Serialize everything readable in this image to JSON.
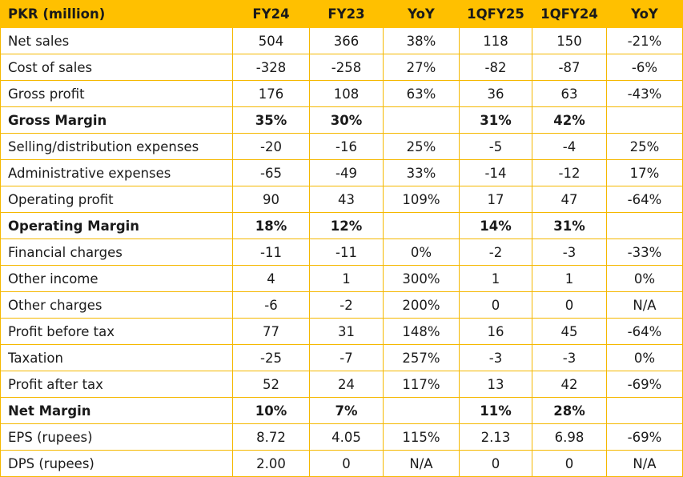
{
  "table": {
    "headers": [
      "PKR (million)",
      "FY24",
      "FY23",
      "YoY",
      "1QFY25",
      "1QFY24",
      "YoY"
    ],
    "rows": [
      {
        "label": "Net sales",
        "bold": false,
        "cells": [
          "504",
          "366",
          "38%",
          "118",
          "150",
          "-21%"
        ]
      },
      {
        "label": "Cost of sales",
        "bold": false,
        "cells": [
          "-328",
          "-258",
          "27%",
          "-82",
          "-87",
          "-6%"
        ]
      },
      {
        "label": "Gross profit",
        "bold": false,
        "cells": [
          "176",
          "108",
          "63%",
          "36",
          "63",
          "-43%"
        ]
      },
      {
        "label": "Gross Margin",
        "bold": true,
        "cells": [
          "35%",
          "30%",
          "",
          "31%",
          "42%",
          ""
        ]
      },
      {
        "label": "Selling/distribution expenses",
        "bold": false,
        "cells": [
          "-20",
          "-16",
          "25%",
          "-5",
          "-4",
          "25%"
        ]
      },
      {
        "label": "Administrative expenses",
        "bold": false,
        "cells": [
          "-65",
          "-49",
          "33%",
          "-14",
          "-12",
          "17%"
        ]
      },
      {
        "label": "Operating profit",
        "bold": false,
        "cells": [
          "90",
          "43",
          "109%",
          "17",
          "47",
          "-64%"
        ]
      },
      {
        "label": "Operating Margin",
        "bold": true,
        "cells": [
          "18%",
          "12%",
          "",
          "14%",
          "31%",
          ""
        ]
      },
      {
        "label": "Financial charges",
        "bold": false,
        "cells": [
          "-11",
          "-11",
          "0%",
          "-2",
          "-3",
          "-33%"
        ]
      },
      {
        "label": "Other income",
        "bold": false,
        "cells": [
          "4",
          "1",
          "300%",
          "1",
          "1",
          "0%"
        ]
      },
      {
        "label": "Other charges",
        "bold": false,
        "cells": [
          "-6",
          "-2",
          "200%",
          "0",
          "0",
          "N/A"
        ]
      },
      {
        "label": "Profit before tax",
        "bold": false,
        "cells": [
          "77",
          "31",
          "148%",
          "16",
          "45",
          "-64%"
        ]
      },
      {
        "label": "Taxation",
        "bold": false,
        "cells": [
          "-25",
          "-7",
          "257%",
          "-3",
          "-3",
          "0%"
        ]
      },
      {
        "label": "Profit after tax",
        "bold": false,
        "cells": [
          "52",
          "24",
          "117%",
          "13",
          "42",
          "-69%"
        ]
      },
      {
        "label": "Net Margin",
        "bold": true,
        "cells": [
          "10%",
          "7%",
          "",
          "11%",
          "28%",
          ""
        ]
      },
      {
        "label": "EPS (rupees)",
        "bold": false,
        "cells": [
          "8.72",
          "4.05",
          "115%",
          "2.13",
          "6.98",
          "-69%"
        ]
      },
      {
        "label": "DPS (rupees)",
        "bold": false,
        "cells": [
          "2.00",
          "0",
          "N/A",
          "0",
          "0",
          "N/A"
        ]
      }
    ]
  },
  "colors": {
    "header_background": "#ffc000",
    "grid_line": "#f5b800"
  }
}
